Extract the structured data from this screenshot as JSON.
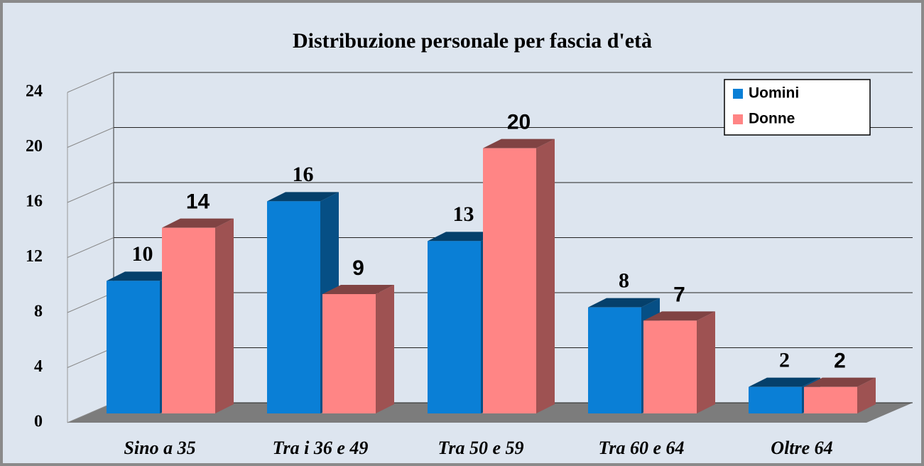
{
  "chart_data": {
    "type": "bar3d",
    "title": "Distribuzione personale per fascia d'età",
    "categories": [
      "Sino a 35",
      "Tra i 36 e  49",
      "Tra 50 e 59",
      "Tra 60 e 64",
      "Oltre 64"
    ],
    "series": [
      {
        "name": "Uomini",
        "color": "#0a7fd6",
        "values": [
          10,
          16,
          13,
          8,
          2
        ]
      },
      {
        "name": "Donne",
        "color": "#ff8585",
        "values": [
          14,
          9,
          20,
          7,
          2
        ]
      }
    ],
    "ylim": [
      0,
      24
    ],
    "yticks": [
      0,
      4,
      8,
      12,
      16,
      20,
      24
    ],
    "grid": true,
    "legend": "upper right"
  }
}
